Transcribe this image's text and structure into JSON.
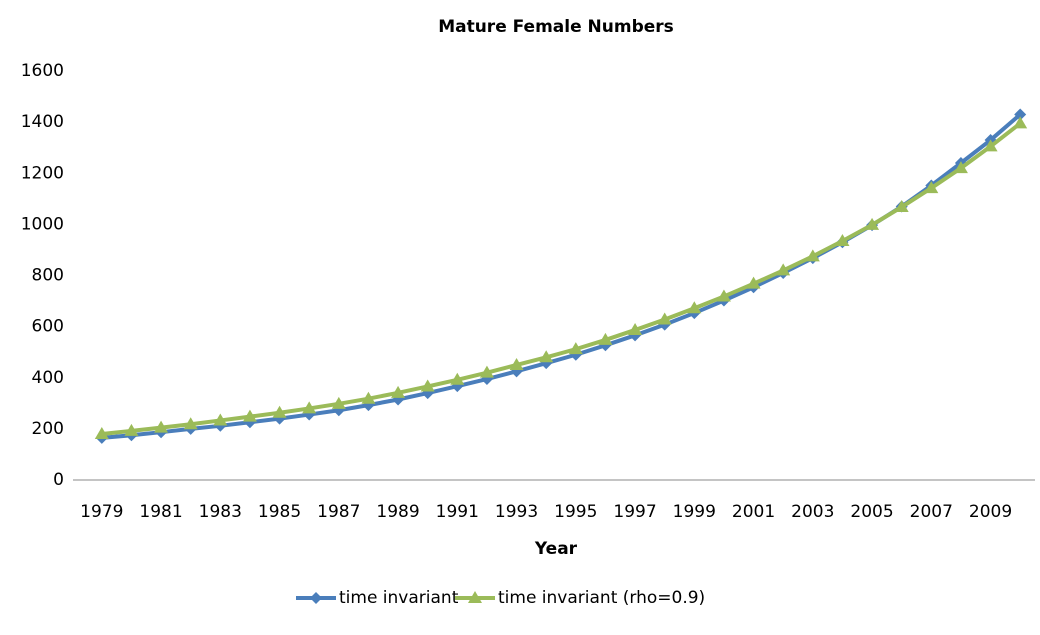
{
  "chart_data": {
    "type": "line",
    "title": "Mature Female Numbers",
    "x_label": "Year",
    "categories": [
      "1979",
      null,
      "1981",
      null,
      "1983",
      null,
      "1985",
      null,
      "1987",
      null,
      "1989",
      null,
      "1991",
      null,
      "1993",
      null,
      "1995",
      null,
      "1997",
      null,
      "1999",
      null,
      "2001",
      null,
      "2003",
      null,
      "2005",
      null,
      "2007",
      null,
      "2009",
      null
    ],
    "series": [
      {
        "name": "time invariant",
        "color": "#4a7ebb",
        "marker": "diamond",
        "values": [
          165,
          175,
          187,
          200,
          212,
          226,
          240,
          256,
          273,
          293,
          315,
          340,
          367,
          395,
          425,
          457,
          490,
          527,
          566,
          608,
          653,
          702,
          754,
          810,
          868,
          930,
          997,
          1070,
          1152,
          1240,
          1330,
          1430
        ]
      },
      {
        "name": "time invariant (rho=0.9)",
        "color": "#9bbb59",
        "marker": "triangle",
        "values": [
          180,
          192,
          205,
          218,
          233,
          248,
          263,
          280,
          298,
          318,
          341,
          366,
          392,
          420,
          450,
          480,
          512,
          548,
          587,
          628,
          672,
          718,
          768,
          820,
          875,
          935,
          998,
          1068,
          1142,
          1220,
          1305,
          1395
        ]
      }
    ],
    "ylim": [
      0,
      1600
    ],
    "yticks": [
      0,
      200,
      400,
      600,
      800,
      1000,
      1200,
      1400,
      1600
    ],
    "legend": "bottom"
  }
}
